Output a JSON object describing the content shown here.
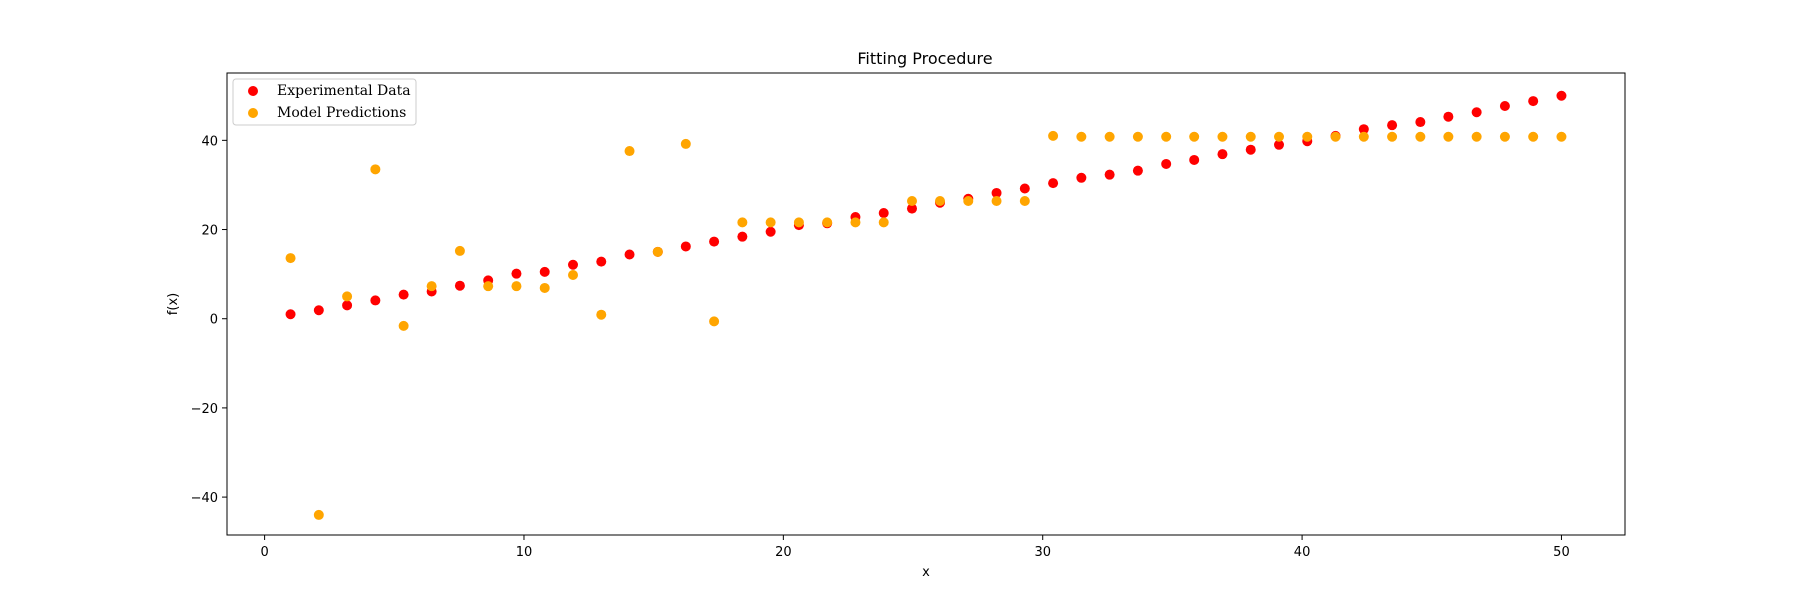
{
  "chart_data": {
    "type": "scatter",
    "title": "Fitting Procedure",
    "xlabel": "x",
    "ylabel": "f(x)",
    "xlim": [
      -1.45,
      52.45
    ],
    "ylim": [
      -48.5,
      55.1
    ],
    "xticks": [
      0,
      10,
      20,
      30,
      40,
      50
    ],
    "yticks": [
      -40,
      -20,
      0,
      20,
      40
    ],
    "xtick_labels": [
      "0",
      "10",
      "20",
      "30",
      "40",
      "50"
    ],
    "ytick_labels": [
      "−40",
      "−20",
      "0",
      "20",
      "40"
    ],
    "legend_position": "top-left",
    "series": [
      {
        "name": "Experimental Data",
        "color": "#ff0000",
        "x": [
          1.0,
          2.09,
          3.18,
          4.27,
          5.36,
          6.44,
          7.53,
          8.62,
          9.71,
          10.8,
          11.89,
          12.98,
          14.07,
          15.16,
          16.24,
          17.33,
          18.42,
          19.51,
          20.6,
          21.69,
          22.78,
          23.87,
          24.96,
          26.04,
          27.13,
          28.22,
          29.31,
          30.4,
          31.49,
          32.58,
          33.67,
          34.76,
          35.84,
          36.93,
          38.02,
          39.11,
          40.2,
          41.29,
          42.38,
          43.47,
          44.56,
          45.64,
          46.73,
          47.82,
          48.91,
          50.0
        ],
        "y": [
          1.0,
          1.9,
          3.0,
          4.1,
          5.4,
          6.1,
          7.4,
          8.6,
          10.1,
          10.5,
          12.1,
          12.8,
          14.4,
          15.0,
          16.2,
          17.3,
          18.4,
          19.5,
          21.0,
          21.4,
          22.8,
          23.7,
          24.7,
          26.0,
          26.9,
          28.2,
          29.2,
          30.4,
          31.6,
          32.3,
          33.2,
          34.7,
          35.6,
          36.9,
          37.9,
          39.0,
          39.8,
          41.0,
          42.5,
          43.4,
          44.1,
          45.3,
          46.3,
          47.7,
          48.8,
          50.0
        ]
      },
      {
        "name": "Model Predictions",
        "color": "#ffa500",
        "x": [
          1.0,
          2.09,
          3.18,
          4.27,
          5.36,
          6.44,
          7.53,
          8.62,
          9.71,
          10.8,
          11.89,
          12.98,
          14.07,
          15.16,
          16.24,
          17.33,
          18.42,
          19.51,
          20.6,
          21.69,
          22.78,
          23.87,
          24.96,
          26.04,
          27.13,
          28.22,
          29.31,
          30.4,
          31.49,
          32.58,
          33.67,
          34.76,
          35.84,
          36.93,
          38.02,
          39.11,
          40.2,
          41.29,
          42.38,
          43.47,
          44.56,
          45.64,
          46.73,
          47.82,
          48.91,
          50.0
        ],
        "y": [
          13.6,
          -44.0,
          5.0,
          33.5,
          -1.6,
          7.3,
          15.2,
          7.3,
          7.3,
          6.9,
          9.8,
          0.9,
          37.6,
          15.0,
          39.2,
          -0.6,
          21.6,
          21.6,
          21.6,
          21.6,
          21.6,
          21.6,
          26.4,
          26.4,
          26.4,
          26.4,
          26.4,
          41.0,
          40.8,
          40.8,
          40.8,
          40.8,
          40.8,
          40.8,
          40.8,
          40.8,
          40.8,
          40.8,
          40.8,
          40.8,
          40.8,
          40.8,
          40.8,
          40.8,
          40.8,
          40.8
        ]
      }
    ]
  }
}
